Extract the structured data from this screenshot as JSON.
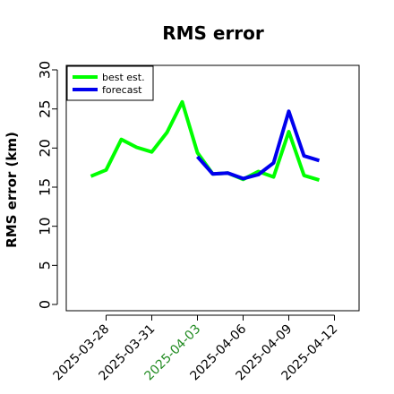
{
  "chart_data": {
    "type": "line",
    "title": "RMS error",
    "xlabel": "",
    "ylabel": "RMS error (km)",
    "ylim": [
      0,
      30
    ],
    "yticks": [
      "0",
      "5",
      "10",
      "15",
      "20",
      "25",
      "30"
    ],
    "xtick_labels": [
      "2025-03-28",
      "2025-03-31",
      "2025-04-03",
      "2025-04-06",
      "2025-04-09",
      "2025-04-12"
    ],
    "highlighted_xtick": "2025-04-03",
    "highlight_color": "#228b22",
    "legend_position": "top-left",
    "grid": false,
    "series": [
      {
        "name": "best est.",
        "color": "#00ff00",
        "points": [
          {
            "x": "2025-03-27",
            "y": 16.4
          },
          {
            "x": "2025-03-28",
            "y": 17.2
          },
          {
            "x": "2025-03-29",
            "y": 21.1
          },
          {
            "x": "2025-03-30",
            "y": 20.1
          },
          {
            "x": "2025-03-31",
            "y": 19.5
          },
          {
            "x": "2025-04-01",
            "y": 22.0
          },
          {
            "x": "2025-04-02",
            "y": 25.9
          },
          {
            "x": "2025-04-03",
            "y": 19.4
          },
          {
            "x": "2025-04-04",
            "y": 16.7
          },
          {
            "x": "2025-04-05",
            "y": 16.8
          },
          {
            "x": "2025-04-06",
            "y": 16.0
          },
          {
            "x": "2025-04-07",
            "y": 17.0
          },
          {
            "x": "2025-04-08",
            "y": 16.3
          },
          {
            "x": "2025-04-09",
            "y": 22.1
          },
          {
            "x": "2025-04-10",
            "y": 16.5
          },
          {
            "x": "2025-04-11",
            "y": 15.9
          }
        ]
      },
      {
        "name": "forecast",
        "color": "#0000ee",
        "points": [
          {
            "x": "2025-04-03",
            "y": 18.9
          },
          {
            "x": "2025-04-04",
            "y": 16.7
          },
          {
            "x": "2025-04-05",
            "y": 16.8
          },
          {
            "x": "2025-04-06",
            "y": 16.1
          },
          {
            "x": "2025-04-07",
            "y": 16.6
          },
          {
            "x": "2025-04-08",
            "y": 18.1
          },
          {
            "x": "2025-04-09",
            "y": 24.7
          },
          {
            "x": "2025-04-10",
            "y": 19.0
          },
          {
            "x": "2025-04-11",
            "y": 18.4
          }
        ]
      }
    ]
  }
}
